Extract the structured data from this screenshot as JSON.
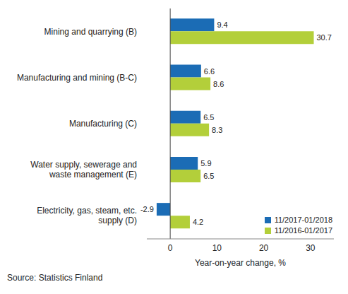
{
  "chart_data": {
    "type": "bar",
    "orientation": "horizontal",
    "categories": [
      "Mining and quarrying (B)",
      "Manufacturing and mining (B-C)",
      "Manufacturing (C)",
      "Water supply, sewerage and waste management (E)",
      "Electricity, gas, steam, etc. supply (D)"
    ],
    "series": [
      {
        "name": "11/2017-01/2018",
        "color": "#1b6cb5",
        "values": [
          9.4,
          6.6,
          6.5,
          5.9,
          -2.9
        ]
      },
      {
        "name": "11/2016-01/2017",
        "color": "#b3cf3a",
        "values": [
          30.7,
          8.6,
          8.3,
          6.5,
          4.2
        ]
      }
    ],
    "x_label": "Year-on-year change, %",
    "xlim": [
      -5,
      35
    ],
    "xticks": [
      0,
      10,
      20,
      30
    ],
    "grid": false,
    "legend": "lower right",
    "data_labels": true,
    "annotations": [
      "Source: Statistics Finland"
    ]
  }
}
